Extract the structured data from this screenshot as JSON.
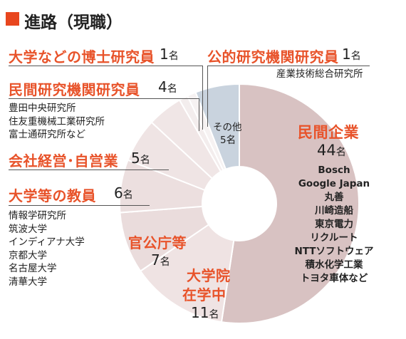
{
  "title": "進路（現職）",
  "chart_data": {
    "type": "pie",
    "unit": "名",
    "colors": [
      "#d8c2c2",
      "#efe3e3",
      "#eadcdc",
      "#ecdfdf",
      "#efe4e4",
      "#f0e6e6",
      "#f3eded",
      "#f6f2f2",
      "#c9d3de"
    ],
    "slices": [
      {
        "label": "民間企業",
        "value": 44,
        "count_text": "44",
        "examples": "Bosch\nGoogle Japan\n丸善\n川崎造船\n東京電力\nリクルート\nNTTソフトウェア\n積水化学工業\nトヨタ車体など"
      },
      {
        "label": "大学院在学中",
        "label_line1": "大学院",
        "label_line2": "在学中",
        "value": 11,
        "count_text": "11"
      },
      {
        "label": "官公庁等",
        "value": 7,
        "count_text": "7"
      },
      {
        "label": "大学等の教員",
        "value": 6,
        "count_text": "6",
        "examples": "情報学研究所\n筑波大学\nインディアナ大学\n京都大学\n名古屋大学\n清華大学"
      },
      {
        "label": "会社経営･自営業",
        "value": 5,
        "count_text": "5"
      },
      {
        "label": "民間研究機関研究員",
        "value": 4,
        "count_text": "4",
        "examples": "豊田中央研究所\n住友重機械工業研究所\n富士通研究所など"
      },
      {
        "label": "大学などの博士研究員",
        "value": 1,
        "count_text": "1"
      },
      {
        "label": "公的研究機関研究員",
        "value": 1,
        "count_text": "1",
        "examples": "産業技術総合研究所"
      },
      {
        "label": "その他",
        "value": 5,
        "count_text": "5"
      }
    ]
  }
}
